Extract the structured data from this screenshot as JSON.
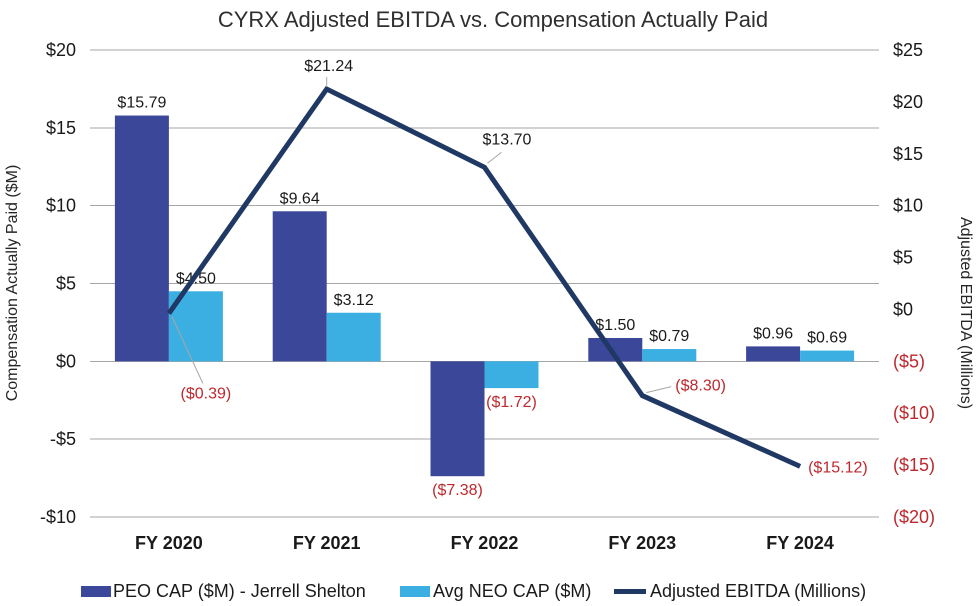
{
  "chart_data": {
    "type": "bar+line combo",
    "title": "CYRX Adjusted EBITDA vs. Compensation Actually Paid",
    "categories": [
      "FY 2020",
      "FY 2021",
      "FY 2022",
      "FY 2023",
      "FY 2024"
    ],
    "left_axis": {
      "title": "Compensation Actually Paid ($M)",
      "min": -10,
      "max": 20,
      "ticks": [
        {
          "label": "$20",
          "value": 20
        },
        {
          "label": "$15",
          "value": 15
        },
        {
          "label": "$10",
          "value": 10
        },
        {
          "label": "$5",
          "value": 5
        },
        {
          "label": "$0",
          "value": 0
        },
        {
          "label": "-$5",
          "value": -5
        },
        {
          "label": "-$10",
          "value": -10
        }
      ]
    },
    "right_axis": {
      "title": "Adjusted EBITDA (Millions)",
      "min": -20,
      "max": 25,
      "ticks": [
        {
          "label": "$25",
          "value": 25
        },
        {
          "label": "$20",
          "value": 20
        },
        {
          "label": "$15",
          "value": 15
        },
        {
          "label": "$10",
          "value": 10
        },
        {
          "label": "$5",
          "value": 5
        },
        {
          "label": "$0",
          "value": 0
        },
        {
          "label": "($5)",
          "value": -5
        },
        {
          "label": "($10)",
          "value": -10
        },
        {
          "label": "($15)",
          "value": -15
        },
        {
          "label": "($20)",
          "value": -20
        }
      ]
    },
    "series": [
      {
        "name": "PEO CAP ($M) - Jerrell Shelton",
        "type": "bar",
        "axis": "left",
        "color": "#3B4899",
        "values": [
          15.79,
          9.64,
          -7.38,
          1.5,
          0.96
        ],
        "labels": [
          "$15.79",
          "$9.64",
          "($7.38)",
          "$1.50",
          "$0.96"
        ]
      },
      {
        "name": "Avg NEO CAP ($M)",
        "type": "bar",
        "axis": "left",
        "color": "#3BAFE1",
        "values": [
          4.5,
          3.12,
          -1.72,
          0.79,
          0.69
        ],
        "labels": [
          "$4.50",
          "$3.12",
          "($1.72)",
          "$0.79",
          "$0.69"
        ]
      },
      {
        "name": "Adjusted EBITDA (Millions)",
        "type": "line",
        "axis": "right",
        "color": "#1F3864",
        "values": [
          -0.39,
          21.24,
          13.7,
          -8.3,
          -15.12
        ],
        "labels": [
          "($0.39)",
          "$21.24",
          "$13.70",
          "($8.30)",
          "($15.12)"
        ]
      }
    ],
    "grid": true,
    "legend_position": "bottom",
    "negative_label_color": "#BE282E",
    "gridline_color": "#A6A6A6",
    "background_color": "#FFFFFF"
  }
}
